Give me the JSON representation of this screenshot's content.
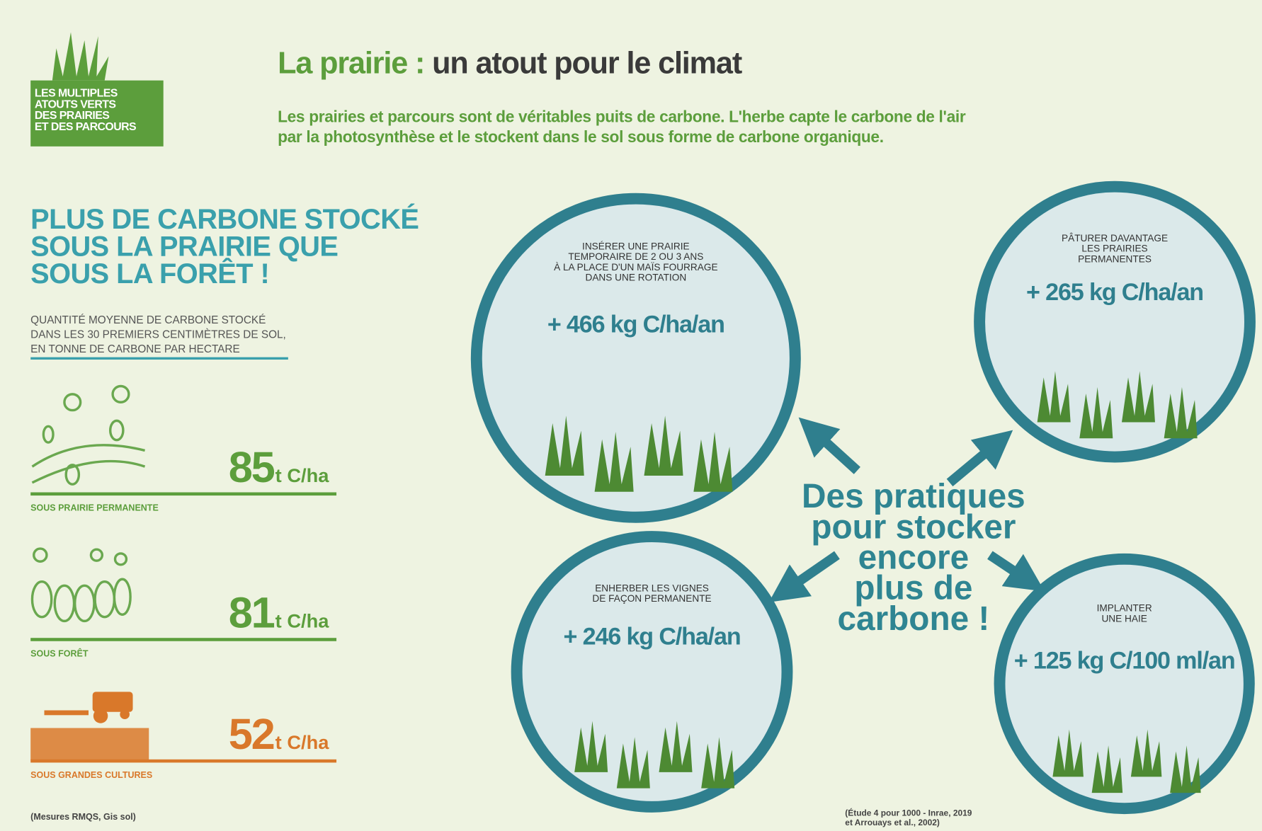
{
  "badge": {
    "lines": [
      "LES MULTIPLES",
      "ATOUTS VERTS",
      "DES PRAIRIES",
      "ET DES PARCOURS"
    ]
  },
  "header": {
    "title_highlight": "La prairie :",
    "title_rest": "un atout pour le climat",
    "intro": [
      "Les prairies et parcours sont de véritables puits de carbone. L'herbe capte le carbone de l'air",
      "par la photosynthèse et le stockent dans le sol sous forme de carbone organique."
    ]
  },
  "storage": {
    "heading": [
      "PLUS DE CARBONE STOCKÉ",
      "SOUS LA PRAIRIE QUE",
      "SOUS LA FORÊT !"
    ],
    "subtitle": [
      "QUANTITÉ MOYENNE DE CARBONE STOCKÉ",
      "DANS LES 30 PREMIERS CENTIMÈTRES DE SOL,",
      "EN TONNE DE CARBONE PAR HECTARE"
    ],
    "items": [
      {
        "value": "85",
        "unit": "t C/ha",
        "label": "SOUS PRAIRIE PERMANENTE"
      },
      {
        "value": "81",
        "unit": "t C/ha",
        "label": "SOUS FORÊT"
      },
      {
        "value": "52",
        "unit": "t C/ha",
        "label": "SOUS GRANDES CULTURES"
      }
    ],
    "source": "(Mesures RMQS, Gis sol)"
  },
  "practices": {
    "center": [
      "Des pratiques",
      "pour stocker",
      "encore",
      "plus de",
      "carbone !"
    ],
    "circles": [
      {
        "label": [
          "INSÉRER UNE PRAIRIE",
          "TEMPORAIRE DE 2 OU 3 ANS",
          "À LA PLACE D'UN MAÏS FOURRAGE",
          "DANS UNE ROTATION"
        ],
        "value": "+ 466 kg C/ha/an"
      },
      {
        "label": [
          "PÂTURER DAVANTAGE",
          "LES PRAIRIES",
          "PERMANENTES"
        ],
        "value": "+ 265 kg C/ha/an"
      },
      {
        "label": [
          "ENHERBER LES VIGNES",
          "DE FAÇON PERMANENTE"
        ],
        "value": "+ 246 kg C/ha/an"
      },
      {
        "label": [
          "IMPLANTER",
          "UNE HAIE"
        ],
        "value": "+ 125 kg C/100 ml/an"
      }
    ],
    "source": [
      "(Étude 4 pour 1000 - Inrae, 2019",
      "et Arrouays et al., 2002)"
    ]
  }
}
